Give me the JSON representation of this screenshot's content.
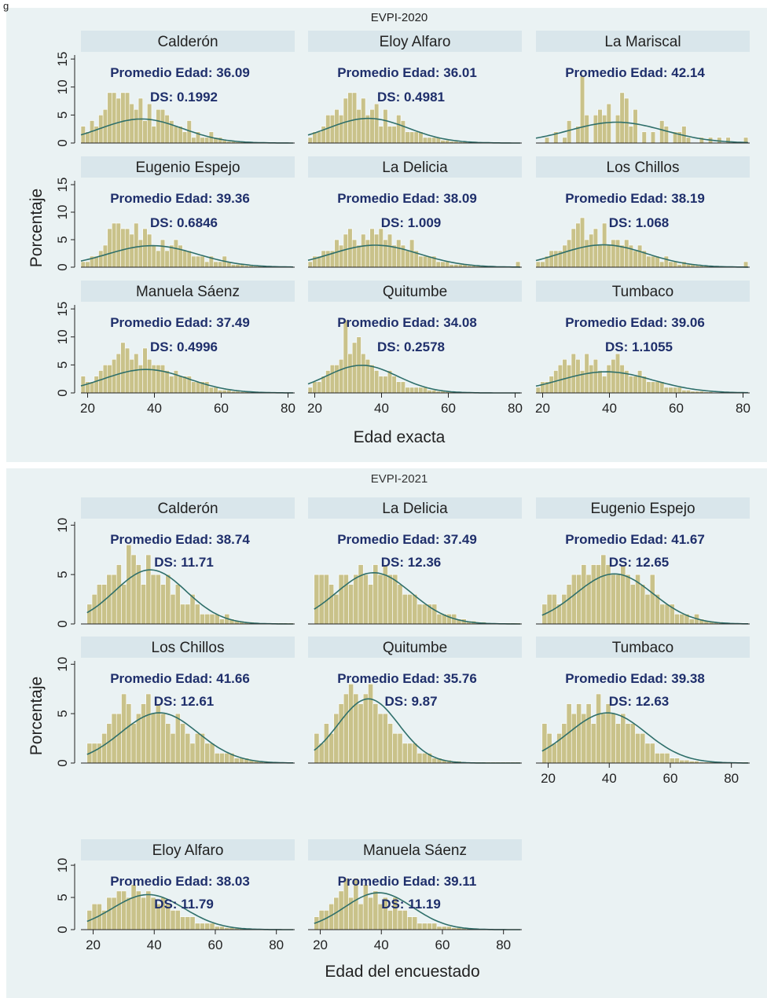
{
  "figure_caption": "g",
  "colors": {
    "background": "#eaf2f3",
    "strip": "#d9e6eb",
    "bar_fill": "#c9c28a",
    "bar_stroke": "#ffffff",
    "curve": "#2f6f6a",
    "annotation": "#1f2f6b",
    "axis": "#222222"
  },
  "chart_data": [
    {
      "type": "bar",
      "title": "EVPI-2020",
      "ylabel": "Porcentaje",
      "xlabel": "Edad exacta",
      "xlim": [
        18,
        82
      ],
      "ylim": [
        0,
        16
      ],
      "x_ticks": [
        "20",
        "40",
        "60",
        "80"
      ],
      "y_ticks": [
        "0",
        "5",
        "10",
        "15"
      ],
      "grid": false,
      "panels": [
        {
          "name": "Calderón",
          "mean_label": "Promedio Edad: 36.09",
          "sd_label": "DS: 0.1992",
          "mean": 36.09,
          "sd": 12.3,
          "values": [
            3,
            2,
            4,
            3,
            5,
            6,
            9,
            9,
            8,
            9,
            9,
            7,
            6,
            8,
            4,
            7,
            3,
            6,
            6,
            5,
            4,
            3,
            3,
            2,
            4,
            1,
            2,
            1,
            1,
            2,
            1,
            1,
            0.5,
            0.3,
            0.3,
            0.2,
            0.2,
            0.1,
            0.1,
            0.1,
            0.1,
            0.1,
            0.1,
            0.1,
            0.1,
            0.1,
            0.1,
            0.1
          ]
        },
        {
          "name": "Eloy Alfaro",
          "mean_label": "Promedio Edad: 36.01",
          "sd_label": "DS: 0.4981",
          "mean": 36.01,
          "sd": 12.0,
          "values": [
            1,
            2,
            2,
            3,
            5,
            5,
            6,
            5,
            8,
            9,
            9,
            6,
            8,
            5,
            6,
            7,
            3,
            6,
            3,
            3,
            5,
            4,
            2,
            2,
            2,
            2,
            1,
            1,
            1,
            1,
            0.5,
            0.5,
            0.3,
            0.3,
            0.2,
            0.2,
            0.1,
            0.1,
            0.1,
            0.1,
            0.1,
            0.1,
            0.1,
            0.1,
            0.1,
            0.1,
            0.1,
            0.1
          ]
        },
        {
          "name": "La Mariscal",
          "mean_label": "Promedio Edad: 42.14",
          "sd_label": "",
          "mean": 42.14,
          "sd": 14.2,
          "values": [
            0,
            0,
            1,
            0,
            2,
            0,
            1,
            4,
            0,
            3,
            12,
            5,
            0,
            5,
            6,
            5,
            7,
            0,
            5,
            9,
            8,
            3,
            6,
            0,
            2,
            0,
            2,
            0,
            4,
            3,
            0,
            2,
            2,
            3,
            1,
            0,
            0,
            1,
            0,
            1,
            0,
            1,
            0,
            1,
            0,
            0,
            0,
            1
          ]
        },
        {
          "name": "Eugenio Espejo",
          "mean_label": "Promedio Edad: 39.36",
          "sd_label": "DS: 0.6846",
          "mean": 39.36,
          "sd": 13.5,
          "values": [
            1,
            1,
            2,
            2,
            3,
            4,
            7,
            8,
            8,
            7,
            7,
            6,
            8,
            5,
            7,
            6,
            4,
            3,
            5,
            3,
            4,
            5,
            4,
            3,
            3,
            2,
            2,
            2,
            1,
            2,
            1,
            1,
            2,
            1,
            0.5,
            0.5,
            0.5,
            0.3,
            0.3,
            0.2,
            0.2,
            0.2,
            0.1,
            0.1,
            0.1,
            0.1,
            0.1,
            0.1
          ]
        },
        {
          "name": "La Delicia",
          "mean_label": "Promedio Edad: 38.09",
          "sd_label": "DS: 1.009",
          "mean": 38.09,
          "sd": 13.2,
          "values": [
            1,
            2,
            2,
            3,
            3,
            3,
            5,
            4,
            6,
            7,
            5,
            4,
            6,
            5,
            7,
            6,
            7,
            5,
            6,
            4,
            5,
            4,
            3,
            5,
            3,
            2,
            2,
            2,
            2,
            1,
            1,
            1,
            0.5,
            0.5,
            0.5,
            0.5,
            0.3,
            0.3,
            0.2,
            0.2,
            0.2,
            0.1,
            0.1,
            0.1,
            0.1,
            0.1,
            0.1,
            1
          ]
        },
        {
          "name": "Los Chillos",
          "mean_label": "Promedio Edad: 38.19",
          "sd_label": "DS: 1.068",
          "mean": 38.19,
          "sd": 13.0,
          "values": [
            1,
            1,
            2,
            3,
            3,
            3,
            4,
            5,
            7,
            8,
            9,
            5,
            6,
            7,
            4,
            8,
            4,
            5,
            5,
            4,
            5,
            4,
            3,
            4,
            3,
            2,
            2,
            2,
            1,
            2,
            1,
            1,
            0.5,
            1,
            0.5,
            0.5,
            0.3,
            0.3,
            0.2,
            0.2,
            0.2,
            0.1,
            0.1,
            0.1,
            0.1,
            0.1,
            0.1,
            1
          ]
        },
        {
          "name": "Manuela Sáenz",
          "mean_label": "Promedio Edad: 37.49",
          "sd_label": "DS: 0.4996",
          "mean": 37.49,
          "sd": 12.6,
          "values": [
            3,
            2,
            2,
            3,
            4,
            5,
            5,
            6,
            7,
            9,
            8,
            6,
            7,
            5,
            8,
            6,
            5,
            5,
            5,
            4,
            3,
            4,
            3,
            3,
            3,
            2,
            2,
            2,
            2,
            1,
            1,
            0.5,
            0.5,
            0.5,
            0.3,
            0.3,
            0.2,
            0.2,
            0.1,
            0.1,
            0.1,
            0.1,
            0.1,
            0.1,
            0.1,
            0.1,
            0.1,
            0.1
          ]
        },
        {
          "name": "Quitumbe",
          "mean_label": "Promedio Edad: 34.08",
          "sd_label": "DS: 0.2578",
          "mean": 34.08,
          "sd": 10.7,
          "values": [
            1,
            2,
            2,
            3,
            4,
            5,
            5,
            6,
            13,
            7,
            9,
            10,
            7,
            6,
            5,
            4,
            3,
            3,
            4,
            3,
            2,
            2,
            1,
            1,
            1,
            1,
            1,
            0.5,
            0.5,
            0.3,
            0.3,
            0.2,
            0.2,
            0.1,
            0.1,
            0.1,
            0.1,
            0.1,
            0.1,
            0.1,
            0.1,
            0.1,
            0.1,
            0.1,
            0.1,
            0.1,
            0.1,
            0.1
          ]
        },
        {
          "name": "Tumbaco",
          "mean_label": "Promedio Edad: 39.06",
          "sd_label": "DS: 1.1055",
          "mean": 39.06,
          "sd": 14.0,
          "values": [
            1,
            2,
            2,
            3,
            4,
            5,
            6,
            5,
            7,
            6,
            4,
            7,
            5,
            6,
            4,
            3,
            5,
            6,
            7,
            5,
            4,
            3,
            3,
            4,
            3,
            2,
            2,
            2,
            2,
            1,
            1,
            1,
            1,
            0.5,
            0.5,
            0.3,
            0.3,
            0.3,
            0.2,
            0.2,
            0.1,
            0.1,
            0.1,
            0.1,
            0.1,
            0.1,
            0.1,
            0.1
          ]
        }
      ]
    },
    {
      "type": "bar",
      "title": "EVPI-2021",
      "ylabel": "Porcentaje",
      "xlabel": "Edad del encuestado",
      "xlim": [
        16,
        86
      ],
      "ylim": [
        0,
        10.5
      ],
      "x_ticks": [
        "20",
        "40",
        "60",
        "80"
      ],
      "y_ticks": [
        "0",
        "5",
        "10"
      ],
      "grid": false,
      "panels": [
        {
          "name": "Calderón",
          "mean_label": "Promedio Edad: 38.74",
          "sd_label": "DS: 11.71",
          "mean": 38.74,
          "sd": 11.71,
          "values": [
            2,
            3,
            4,
            4,
            5,
            5,
            6,
            4,
            8,
            7,
            6,
            4,
            7,
            5,
            5,
            4,
            5,
            3,
            4,
            2,
            2,
            3,
            2,
            1,
            1,
            1,
            1,
            0.5,
            1,
            0.5,
            0.3,
            0.3,
            0.2,
            0.2,
            0.1,
            0.1,
            0.1,
            0.1,
            0.1,
            0.1,
            0.1,
            0.1
          ]
        },
        {
          "name": "La Delicia",
          "mean_label": "Promedio Edad: 37.49",
          "sd_label": "DS: 12.36",
          "mean": 37.49,
          "sd": 12.36,
          "values": [
            5,
            5,
            5,
            4,
            3,
            5,
            5,
            4,
            5,
            6,
            5,
            4,
            6,
            5,
            6,
            5,
            5,
            4,
            3,
            3,
            3,
            2,
            2,
            2,
            2,
            1,
            1,
            1,
            1,
            0.5,
            0.5,
            0.3,
            0.3,
            0.2,
            0.2,
            0.1,
            0.1,
            0.1,
            0.1,
            0.1,
            0.1,
            0.1
          ]
        },
        {
          "name": "Eugenio Espejo",
          "mean_label": "Promedio Edad: 41.67",
          "sd_label": "DS: 12.65",
          "mean": 41.67,
          "sd": 12.65,
          "values": [
            2,
            3,
            3,
            2,
            3,
            4,
            5,
            5,
            6,
            5,
            6,
            6,
            7,
            6,
            5,
            5,
            6,
            5,
            4,
            5,
            4,
            3,
            5,
            3,
            2,
            2,
            2,
            1,
            1,
            1,
            0.5,
            1,
            0.5,
            0.3,
            0.3,
            0.2,
            0.2,
            0.1,
            0.1,
            0.1,
            0.1,
            0.1
          ]
        },
        {
          "name": "Los Chillos",
          "mean_label": "Promedio Edad: 41.66",
          "sd_label": "DS: 12.61",
          "mean": 41.66,
          "sd": 12.61,
          "values": [
            2,
            2,
            2,
            3,
            4,
            5,
            5,
            7,
            6,
            4,
            5,
            6,
            7,
            5,
            6,
            5,
            4,
            3,
            5,
            4,
            3,
            2,
            3,
            3,
            2,
            2,
            1,
            1,
            1,
            1,
            0.5,
            0.5,
            0.5,
            0.3,
            0.3,
            0.2,
            0.2,
            0.1,
            0.1,
            0.1,
            0.1,
            0.1
          ]
        },
        {
          "name": "Quitumbe",
          "mean_label": "Promedio Edad: 35.76",
          "sd_label": "DS: 9.87",
          "mean": 35.76,
          "sd": 9.87,
          "values": [
            3,
            2,
            4,
            3,
            5,
            6,
            7,
            8,
            7,
            6,
            7,
            8,
            6,
            5,
            5,
            4,
            3,
            3,
            2,
            2,
            2,
            1,
            1,
            1,
            0.5,
            0.5,
            0.3,
            0.3,
            0.2,
            0.2,
            0.1,
            0.1,
            0.1,
            0.1,
            0.1,
            0.1,
            0.1,
            0.1,
            0.1,
            0.1,
            0.1,
            0.1
          ]
        },
        {
          "name": "Tumbaco",
          "mean_label": "Promedio Edad: 39.38",
          "sd_label": "DS: 12.63",
          "mean": 39.38,
          "sd": 12.63,
          "values": [
            4,
            3,
            2,
            3,
            4,
            6,
            5,
            6,
            5,
            6,
            4,
            7,
            5,
            6,
            5,
            4,
            5,
            4,
            4,
            3,
            3,
            2,
            2,
            1,
            1,
            1,
            0.5,
            0.5,
            0.3,
            0.3,
            0.2,
            0.2,
            0.1,
            0.1,
            0.1,
            0.1,
            0.1,
            0.1,
            0.1,
            0.1,
            0.1,
            0.1
          ]
        },
        {
          "name": "Eloy Alfaro",
          "mean_label": "Promedio Edad: 38.03",
          "sd_label": "DS: 11.79",
          "mean": 38.03,
          "sd": 11.79,
          "values": [
            3,
            4,
            4,
            3,
            5,
            5,
            6,
            6,
            5,
            7,
            6,
            5,
            6,
            5,
            4,
            5,
            4,
            3,
            3,
            2,
            2,
            2,
            1,
            1,
            1,
            1,
            0.5,
            0.5,
            0.3,
            0.3,
            0.2,
            0.2,
            0.1,
            0.1,
            0.1,
            0.1,
            0.1,
            0.1,
            0.1,
            0.1,
            0.1,
            0.1
          ]
        },
        {
          "name": "Manuela Sáenz",
          "mean_label": "Promedio Edad: 39.11",
          "sd_label": "DS: 11.19",
          "mean": 39.11,
          "sd": 11.19,
          "values": [
            2,
            3,
            3,
            4,
            5,
            6,
            8,
            5,
            8,
            4,
            7,
            5,
            6,
            4,
            5,
            3,
            5,
            3,
            3,
            2,
            2,
            1,
            1,
            1,
            1,
            0.5,
            0.5,
            0.5,
            0.3,
            0.3,
            0.2,
            0.2,
            0.1,
            0.1,
            0.1,
            0.1,
            0.1,
            0.1,
            0.1,
            0.1,
            0.1,
            0.1
          ]
        }
      ]
    }
  ]
}
